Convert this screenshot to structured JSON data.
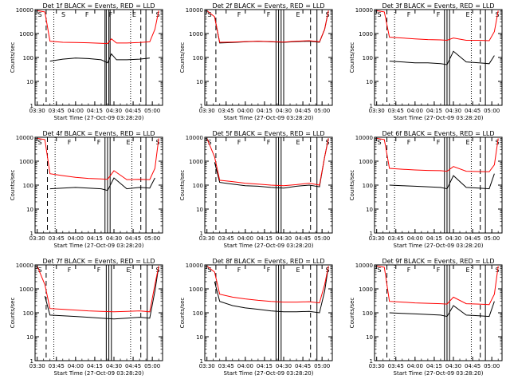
{
  "figure": {
    "y_label": "Counts/sec",
    "x_label": "Start Time (27-Oct-09 03:28:20)",
    "x_tick_labels": [
      "03:30",
      "03:45",
      "04:00",
      "04:15",
      "04:30",
      "04:45",
      "05:00"
    ],
    "y_tick_labels": [
      "1",
      "10",
      "100",
      "1000",
      "10000"
    ],
    "colors": {
      "events": "#000000",
      "lld": "#ff0000",
      "axes": "#000000",
      "background": "#ffffff"
    }
  },
  "chart_data": [
    {
      "type": "line",
      "title": "Det 1f BLACK = Events, RED = LLD",
      "xlabel": "Start Time (27-Oct-09 03:28:20)",
      "ylabel": "Counts/sec",
      "ylog": true,
      "ylim": [
        1,
        10000
      ],
      "xlim": [
        "03:28:20",
        "05:08:00"
      ],
      "region_labels": [
        "S",
        "S",
        "F",
        "F",
        "E",
        "S"
      ],
      "vlines": {
        "dashed": [
          "03:37",
          "04:51"
        ],
        "dotted": [
          "03:43",
          "04:43"
        ],
        "solid": [
          "04:23",
          "04:24",
          "04:26",
          "04:27",
          "04:55"
        ]
      },
      "x": [
        "03:30",
        "03:36",
        "03:40",
        "03:50",
        "04:00",
        "04:10",
        "04:20",
        "04:25",
        "04:28",
        "04:32",
        "04:40",
        "04:50",
        "04:58",
        "05:02",
        "05:05"
      ],
      "series": [
        {
          "name": "Events",
          "values": [
            null,
            null,
            70,
            85,
            95,
            90,
            80,
            60,
            140,
            80,
            80,
            85,
            95,
            null,
            null
          ]
        },
        {
          "name": "LLD",
          "values": [
            9000,
            8000,
            480,
            430,
            420,
            410,
            390,
            380,
            600,
            400,
            400,
            420,
            450,
            1500,
            9000
          ]
        }
      ]
    },
    {
      "type": "line",
      "title": "Det 2f BLACK = Events, RED = LLD",
      "xlabel": "Start Time (27-Oct-09 03:28:20)",
      "ylabel": "Counts/sec",
      "ylog": true,
      "ylim": [
        1,
        10000
      ],
      "xlim": [
        "03:28:20",
        "05:08:00"
      ],
      "region_labels": [
        "S",
        "F",
        "F",
        "E",
        "S"
      ],
      "vlines": {
        "dashed": [
          "03:37",
          "04:51"
        ],
        "dotted": [],
        "solid": [
          "04:24",
          "04:26",
          "04:28",
          "04:30",
          "04:56"
        ]
      },
      "x": [
        "03:30",
        "03:36",
        "03:40",
        "03:50",
        "04:00",
        "04:10",
        "04:20",
        "04:30",
        "04:40",
        "04:50",
        "04:58",
        "05:02",
        "05:05"
      ],
      "series": [
        {
          "name": "Events",
          "values": [
            null,
            5000,
            400,
            420,
            450,
            470,
            450,
            430,
            460,
            480,
            430,
            1500,
            9000
          ]
        },
        {
          "name": "LLD",
          "values": [
            9000,
            5000,
            430,
            440,
            460,
            480,
            460,
            440,
            480,
            500,
            450,
            1500,
            9000
          ]
        }
      ]
    },
    {
      "type": "line",
      "title": "Det 3f BLACK = Events, RED = LLD",
      "xlabel": "Start Time (27-Oct-09 03:28:20)",
      "ylabel": "Counts/sec",
      "ylog": true,
      "ylim": [
        1,
        10000
      ],
      "xlim": [
        "03:28:20",
        "05:08:00"
      ],
      "region_labels": [
        "S",
        "F",
        "F",
        "E",
        "S"
      ],
      "vlines": {
        "dashed": [
          "03:38",
          "04:51"
        ],
        "dotted": [
          "03:44",
          "04:44"
        ],
        "solid": [
          "04:23",
          "04:25",
          "04:27",
          "04:55"
        ]
      },
      "x": [
        "03:30",
        "03:36",
        "03:40",
        "03:50",
        "04:00",
        "04:10",
        "04:20",
        "04:25",
        "04:30",
        "04:40",
        "04:50",
        "04:58",
        "05:02",
        "05:05"
      ],
      "series": [
        {
          "name": "Events",
          "values": [
            null,
            null,
            70,
            65,
            60,
            60,
            55,
            50,
            180,
            65,
            60,
            55,
            120,
            null
          ]
        },
        {
          "name": "LLD",
          "values": [
            9000,
            8000,
            700,
            650,
            600,
            560,
            540,
            520,
            650,
            520,
            520,
            500,
            1200,
            9000
          ]
        }
      ]
    },
    {
      "type": "line",
      "title": "Det 4f BLACK = Events, RED = LLD",
      "xlabel": "Start Time (27-Oct-09 03:28:20)",
      "ylabel": "Counts/sec",
      "ylog": true,
      "ylim": [
        1,
        10000
      ],
      "xlim": [
        "03:28:20",
        "05:08:00"
      ],
      "region_labels": [
        "S",
        "F",
        "F",
        "E",
        "S"
      ],
      "vlines": {
        "dashed": [
          "03:38",
          "04:51"
        ],
        "dotted": [
          "03:44",
          "04:44"
        ],
        "solid": [
          "04:23",
          "04:25",
          "04:27",
          "04:55"
        ]
      },
      "x": [
        "03:30",
        "03:36",
        "03:40",
        "03:50",
        "04:00",
        "04:10",
        "04:20",
        "04:25",
        "04:30",
        "04:40",
        "04:50",
        "04:58",
        "05:02",
        "05:05"
      ],
      "series": [
        {
          "name": "Events",
          "values": [
            null,
            null,
            70,
            75,
            80,
            75,
            70,
            60,
            200,
            70,
            80,
            75,
            200,
            null
          ]
        },
        {
          "name": "LLD",
          "values": [
            9000,
            8000,
            300,
            250,
            210,
            190,
            180,
            175,
            400,
            170,
            175,
            170,
            500,
            9000
          ]
        }
      ]
    },
    {
      "type": "line",
      "title": "Det 5f BLACK = Events, RED = LLD",
      "xlabel": "Start Time (27-Oct-09 03:28:20)",
      "ylabel": "Counts/sec",
      "ylog": true,
      "ylim": [
        1,
        10000
      ],
      "xlim": [
        "03:28:20",
        "05:08:00"
      ],
      "region_labels": [
        "S",
        "F",
        "F",
        "E",
        "S"
      ],
      "vlines": {
        "dashed": [
          "03:37",
          "04:51"
        ],
        "dotted": [],
        "solid": [
          "04:24",
          "04:26",
          "04:28",
          "04:56"
        ]
      },
      "x": [
        "03:30",
        "03:36",
        "03:40",
        "03:50",
        "04:00",
        "04:10",
        "04:20",
        "04:30",
        "04:40",
        "04:50",
        "04:58",
        "05:02",
        "05:05"
      ],
      "series": [
        {
          "name": "Events",
          "values": [
            null,
            900,
            130,
            110,
            95,
            90,
            80,
            75,
            90,
            100,
            85,
            1500,
            9000
          ]
        },
        {
          "name": "LLD",
          "values": [
            9000,
            1500,
            160,
            140,
            120,
            110,
            100,
            95,
            105,
            120,
            100,
            1500,
            9000
          ]
        }
      ]
    },
    {
      "type": "line",
      "title": "Det 6f BLACK = Events, RED = LLD",
      "xlabel": "Start Time (27-Oct-09 03:28:20)",
      "ylabel": "Counts/sec",
      "ylog": true,
      "ylim": [
        1,
        10000
      ],
      "xlim": [
        "03:28:20",
        "05:08:00"
      ],
      "region_labels": [
        "S",
        "F",
        "F",
        "E",
        "S"
      ],
      "vlines": {
        "dashed": [
          "03:38",
          "04:51"
        ],
        "dotted": [
          "03:44",
          "04:44"
        ],
        "solid": [
          "04:23",
          "04:25",
          "04:27",
          "04:55"
        ]
      },
      "x": [
        "03:30",
        "03:36",
        "03:40",
        "03:50",
        "04:00",
        "04:10",
        "04:20",
        "04:25",
        "04:30",
        "04:40",
        "04:50",
        "04:58",
        "05:02",
        "05:05"
      ],
      "series": [
        {
          "name": "Events",
          "values": [
            null,
            null,
            100,
            95,
            90,
            85,
            80,
            70,
            250,
            80,
            75,
            70,
            300,
            null
          ]
        },
        {
          "name": "LLD",
          "values": [
            9000,
            8000,
            500,
            460,
            430,
            410,
            400,
            380,
            600,
            380,
            370,
            360,
            700,
            9000
          ]
        }
      ]
    },
    {
      "type": "line",
      "title": "Det 7f BLACK = Events, RED = LLD",
      "xlabel": "Start Time (27-Oct-09 03:28:20)",
      "ylabel": "Counts/sec",
      "ylog": true,
      "ylim": [
        1,
        10000
      ],
      "xlim": [
        "03:28:20",
        "05:08:00"
      ],
      "region_labels": [
        "S",
        "F",
        "F",
        "E",
        "S"
      ],
      "vlines": {
        "dashed": [
          "03:37",
          "04:51"
        ],
        "dotted": [
          "03:43",
          "04:43"
        ],
        "solid": [
          "04:24",
          "04:26",
          "04:28",
          "04:56"
        ]
      },
      "x": [
        "03:30",
        "03:36",
        "03:40",
        "03:50",
        "04:00",
        "04:10",
        "04:20",
        "04:30",
        "04:40",
        "04:50",
        "04:58",
        "05:02",
        "05:05"
      ],
      "series": [
        {
          "name": "Events",
          "values": [
            null,
            500,
            80,
            75,
            70,
            65,
            60,
            55,
            60,
            65,
            60,
            800,
            9000
          ]
        },
        {
          "name": "LLD",
          "values": [
            9000,
            1500,
            150,
            140,
            130,
            120,
            115,
            110,
            115,
            120,
            110,
            1500,
            9000
          ]
        }
      ]
    },
    {
      "type": "line",
      "title": "Det 8f BLACK = Events, RED = LLD",
      "xlabel": "Start Time (27-Oct-09 03:28:20)",
      "ylabel": "Counts/sec",
      "ylog": true,
      "ylim": [
        1,
        10000
      ],
      "xlim": [
        "03:28:20",
        "05:08:00"
      ],
      "region_labels": [
        "S",
        "F",
        "F",
        "E",
        "S"
      ],
      "vlines": {
        "dashed": [
          "03:37",
          "04:51"
        ],
        "dotted": [],
        "solid": [
          "04:24",
          "04:26",
          "04:28",
          "04:56"
        ]
      },
      "x": [
        "03:30",
        "03:36",
        "03:40",
        "03:50",
        "04:00",
        "04:10",
        "04:20",
        "04:30",
        "04:40",
        "04:50",
        "04:58",
        "05:02",
        "05:05"
      ],
      "series": [
        {
          "name": "Events",
          "values": [
            null,
            2000,
            300,
            200,
            160,
            140,
            120,
            110,
            110,
            115,
            100,
            800,
            9000
          ]
        },
        {
          "name": "LLD",
          "values": [
            9000,
            5000,
            600,
            450,
            380,
            330,
            300,
            280,
            280,
            290,
            260,
            1500,
            9000
          ]
        }
      ]
    },
    {
      "type": "line",
      "title": "Det 9f BLACK = Events, RED = LLD",
      "xlabel": "Start Time (27-Oct-09 03:28:20)",
      "ylabel": "Counts/sec",
      "ylog": true,
      "ylim": [
        1,
        10000
      ],
      "xlim": [
        "03:28:20",
        "05:08:00"
      ],
      "region_labels": [
        "S",
        "F",
        "F",
        "E",
        "S"
      ],
      "vlines": {
        "dashed": [
          "03:38",
          "04:51"
        ],
        "dotted": [
          "03:44",
          "04:44"
        ],
        "solid": [
          "04:23",
          "04:25",
          "04:27",
          "04:55"
        ]
      },
      "x": [
        "03:30",
        "03:36",
        "03:40",
        "03:50",
        "04:00",
        "04:10",
        "04:20",
        "04:25",
        "04:30",
        "04:40",
        "04:50",
        "04:58",
        "05:02",
        "05:05"
      ],
      "series": [
        {
          "name": "Events",
          "values": [
            null,
            null,
            100,
            95,
            90,
            85,
            80,
            70,
            200,
            80,
            75,
            70,
            300,
            null
          ]
        },
        {
          "name": "LLD",
          "values": [
            9000,
            8000,
            300,
            280,
            260,
            250,
            240,
            230,
            450,
            240,
            230,
            220,
            600,
            9000
          ]
        }
      ]
    }
  ]
}
